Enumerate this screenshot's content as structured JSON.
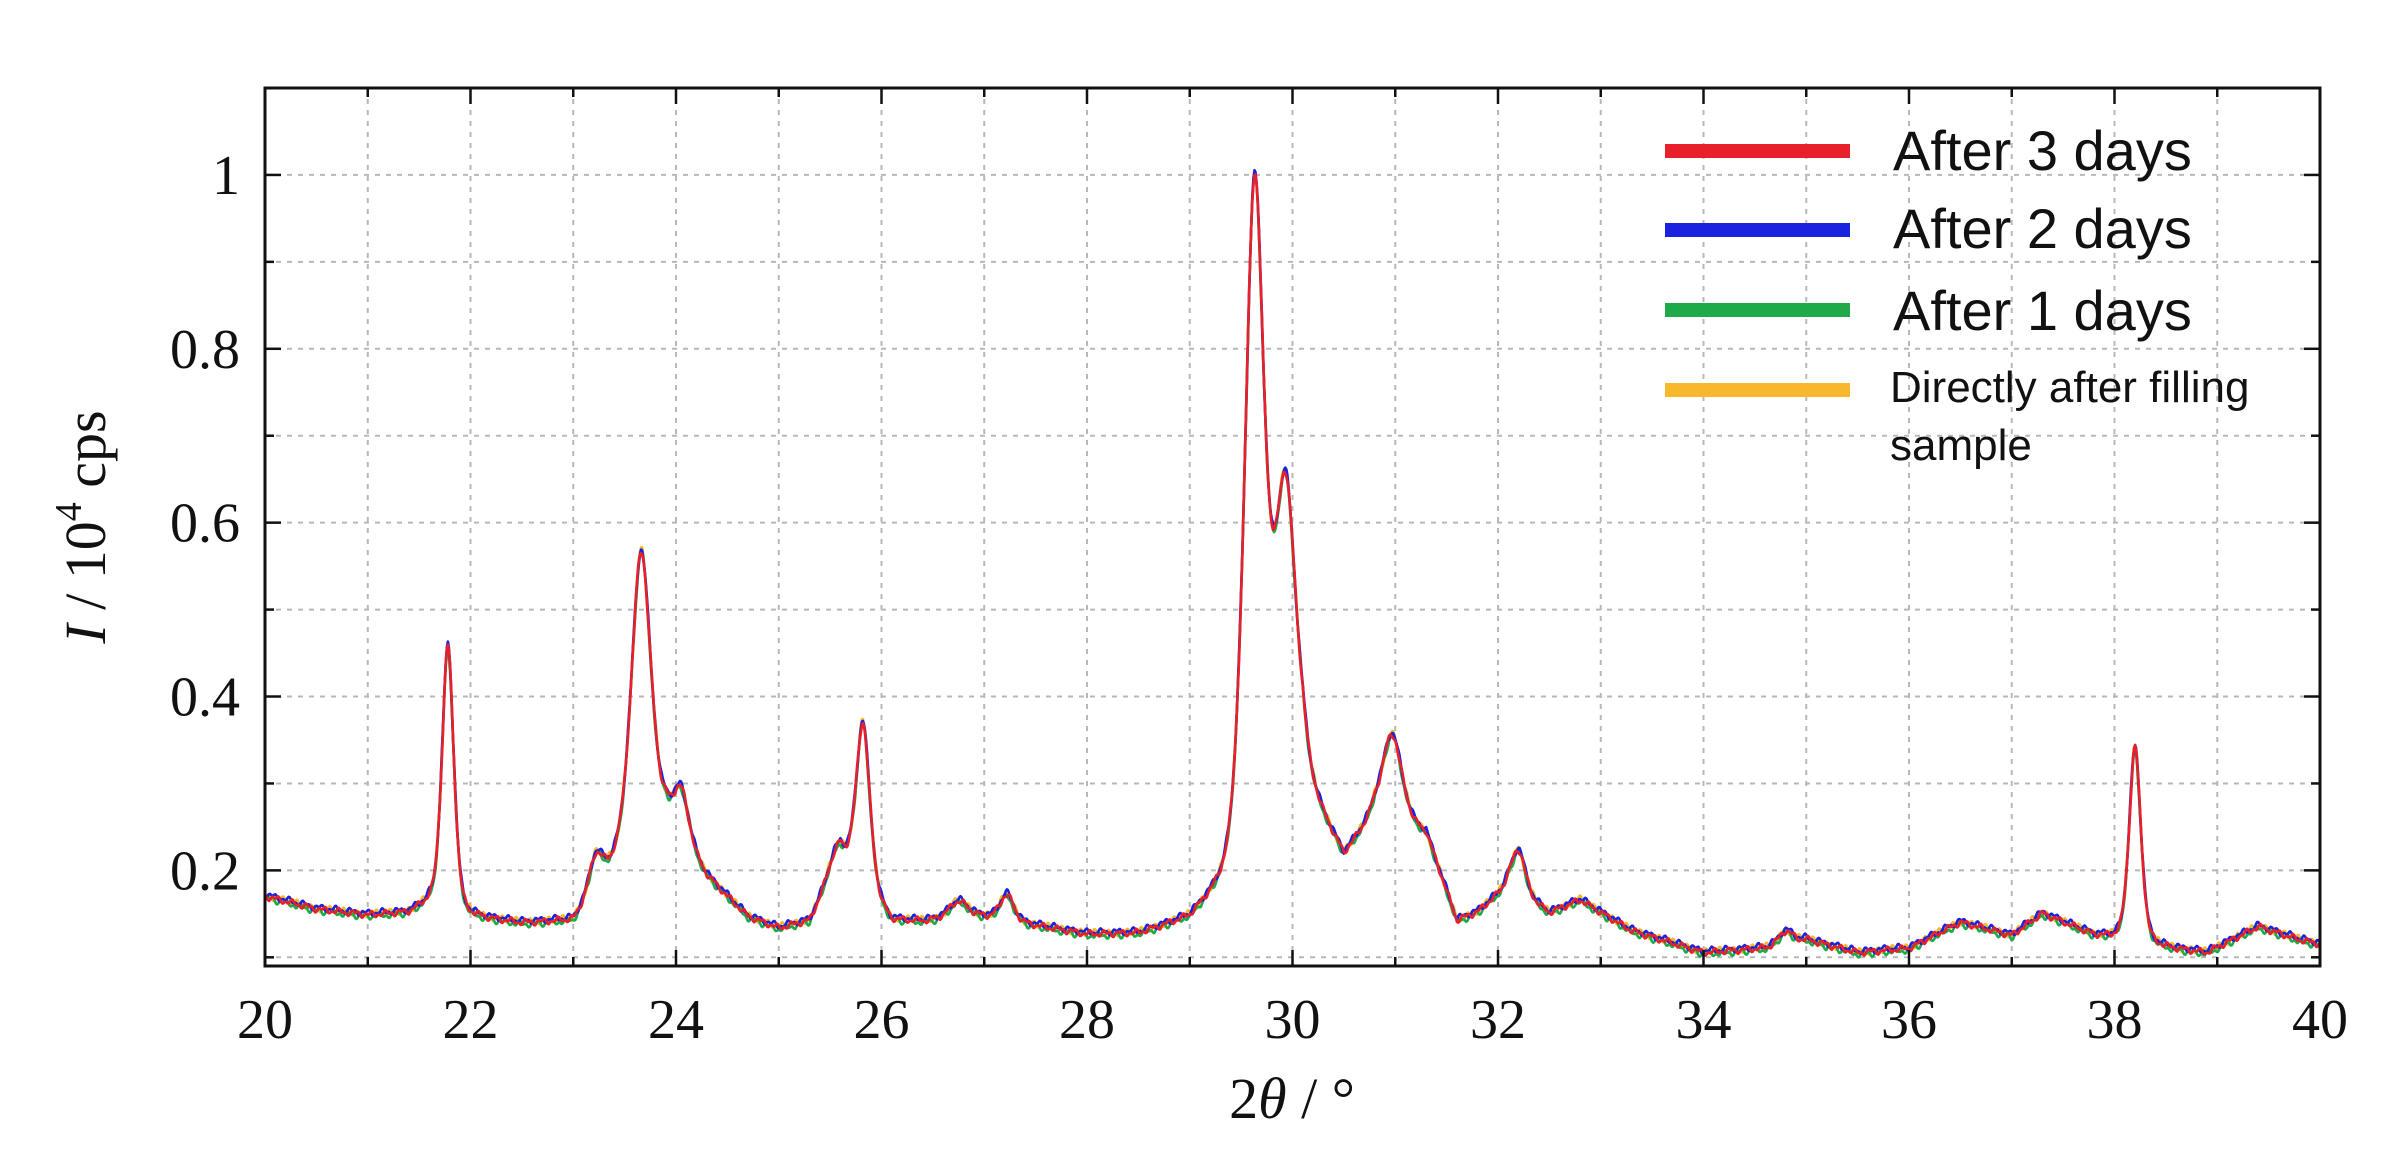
{
  "chart_data": {
    "type": "line",
    "xlabel_prefix": "2",
    "xlabel_symbol": "θ",
    "xlabel_suffix": " / °",
    "ylabel_symbol": "I",
    "ylabel_mid": " / 10",
    "ylabel_exp": "4",
    "ylabel_unit": " cps",
    "xlim": [
      20,
      40
    ],
    "ylim": [
      0.09,
      1.1
    ],
    "xticks": [
      "20",
      "22",
      "24",
      "26",
      "28",
      "30",
      "32",
      "34",
      "36",
      "38",
      "40"
    ],
    "yticks": [
      "0.2",
      "0.4",
      "0.6",
      "0.8",
      "1"
    ],
    "grid": true,
    "legend_position": "top-right",
    "baseline": [
      [
        20.0,
        0.17
      ],
      [
        20.5,
        0.155
      ],
      [
        21.0,
        0.148
      ],
      [
        21.4,
        0.15
      ],
      [
        21.6,
        0.16
      ],
      [
        22.0,
        0.145
      ],
      [
        22.5,
        0.138
      ],
      [
        23.0,
        0.14
      ],
      [
        23.4,
        0.2
      ],
      [
        23.9,
        0.25
      ],
      [
        24.3,
        0.19
      ],
      [
        24.7,
        0.145
      ],
      [
        25.0,
        0.132
      ],
      [
        25.3,
        0.14
      ],
      [
        25.6,
        0.21
      ],
      [
        26.1,
        0.14
      ],
      [
        26.4,
        0.14
      ],
      [
        27.0,
        0.145
      ],
      [
        27.5,
        0.135
      ],
      [
        28.0,
        0.125
      ],
      [
        28.5,
        0.125
      ],
      [
        29.0,
        0.14
      ],
      [
        29.3,
        0.17
      ],
      [
        30.1,
        0.29
      ],
      [
        30.5,
        0.21
      ],
      [
        30.8,
        0.26
      ],
      [
        31.3,
        0.24
      ],
      [
        31.6,
        0.14
      ],
      [
        31.8,
        0.15
      ],
      [
        32.1,
        0.18
      ],
      [
        32.5,
        0.15
      ],
      [
        32.8,
        0.165
      ],
      [
        33.3,
        0.13
      ],
      [
        34.0,
        0.105
      ],
      [
        34.6,
        0.11
      ],
      [
        35.0,
        0.12
      ],
      [
        35.5,
        0.105
      ],
      [
        36.0,
        0.11
      ],
      [
        36.5,
        0.14
      ],
      [
        37.0,
        0.125
      ],
      [
        37.3,
        0.15
      ],
      [
        37.8,
        0.125
      ],
      [
        38.5,
        0.11
      ],
      [
        38.9,
        0.105
      ],
      [
        39.4,
        0.135
      ],
      [
        39.8,
        0.12
      ],
      [
        40.0,
        0.115
      ]
    ],
    "peaks": [
      {
        "center": 21.78,
        "height": 0.305,
        "width": 0.06
      },
      {
        "center": 23.22,
        "height": 0.04,
        "width": 0.07
      },
      {
        "center": 23.66,
        "height": 0.34,
        "width": 0.1
      },
      {
        "center": 24.05,
        "height": 0.06,
        "width": 0.08
      },
      {
        "center": 25.55,
        "height": 0.02,
        "width": 0.08
      },
      {
        "center": 25.82,
        "height": 0.19,
        "width": 0.07
      },
      {
        "center": 26.75,
        "height": 0.02,
        "width": 0.1
      },
      {
        "center": 27.22,
        "height": 0.03,
        "width": 0.07
      },
      {
        "center": 29.63,
        "height": 0.76,
        "width": 0.1
      },
      {
        "center": 29.93,
        "height": 0.36,
        "width": 0.11
      },
      {
        "center": 30.97,
        "height": 0.1,
        "width": 0.1
      },
      {
        "center": 32.2,
        "height": 0.05,
        "width": 0.07
      },
      {
        "center": 34.8,
        "height": 0.015,
        "width": 0.07
      },
      {
        "center": 38.2,
        "height": 0.225,
        "width": 0.06
      }
    ],
    "series": [
      {
        "name": "After 3 days",
        "color": "#e8202a",
        "offset": 0.0,
        "phase": 0.3
      },
      {
        "name": "After 2 days",
        "color": "#1a22e0",
        "offset": 0.002,
        "phase": 1.7
      },
      {
        "name": "After 1 days",
        "color": "#1faa4a",
        "offset": -0.002,
        "phase": 2.9
      },
      {
        "name": "Directly after filling sample",
        "color": "#f8b72c",
        "offset": 0.001,
        "phase": 4.4
      }
    ],
    "legend_lines": {
      "l3": "After 3 days",
      "l2": "After 2 days",
      "l1": "After 1 days",
      "l0a": "Directly after filling",
      "l0b": "sample"
    }
  }
}
